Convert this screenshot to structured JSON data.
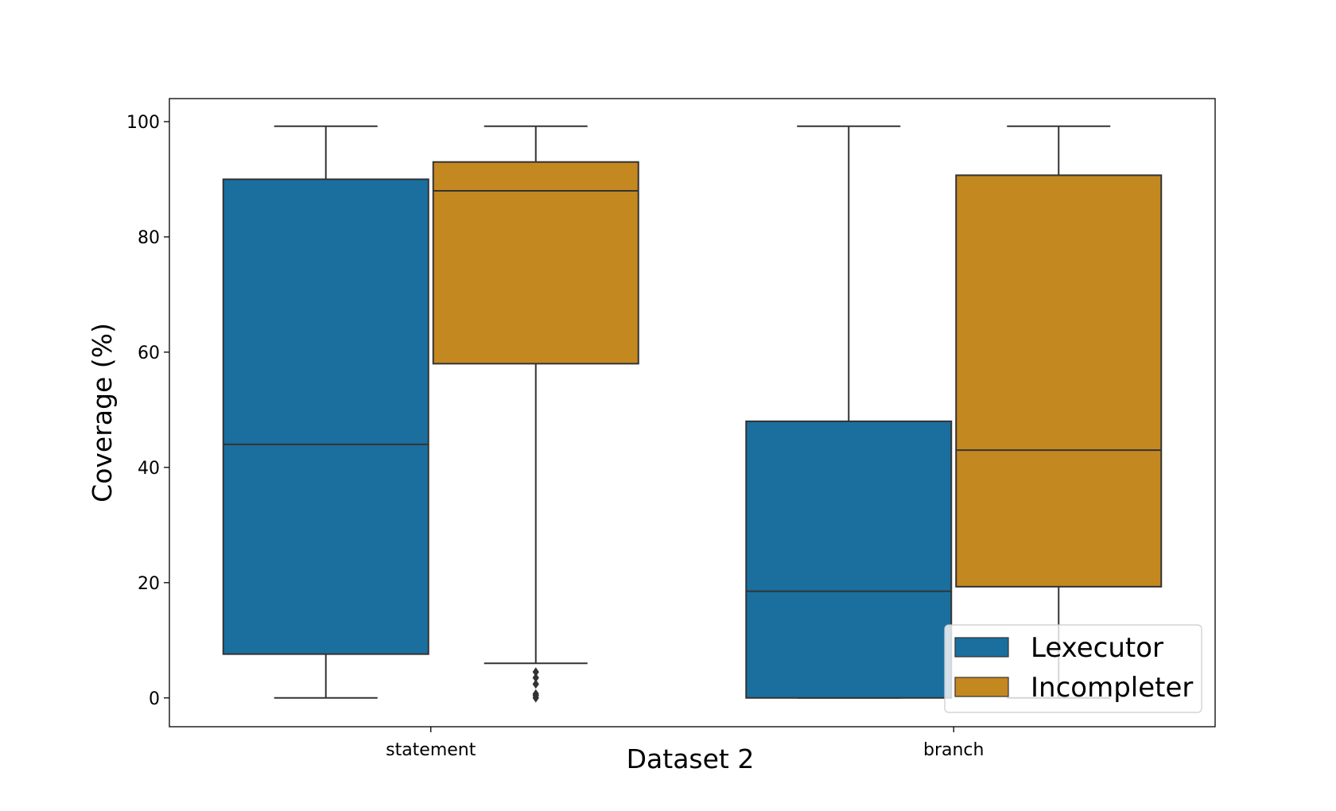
{
  "chart_data": {
    "type": "box",
    "xlabel": "Dataset 2",
    "ylabel": "Coverage (%)",
    "categories": [
      "statement",
      "branch"
    ],
    "ylim": [
      -5,
      104
    ],
    "yticks": [
      0,
      20,
      40,
      60,
      80,
      100
    ],
    "grid": false,
    "legend_position": "bottom-right",
    "series": [
      {
        "name": "Lexecutor",
        "color": "#1a6f9f",
        "boxes": [
          {
            "category": "statement",
            "whisker_low": 0,
            "q1": 7.6,
            "median": 44,
            "q3": 90,
            "whisker_high": 99.2,
            "outliers": []
          },
          {
            "category": "branch",
            "whisker_low": 0,
            "q1": 0,
            "median": 18.5,
            "q3": 48,
            "whisker_high": 99.2,
            "outliers": []
          }
        ]
      },
      {
        "name": "Incompleter",
        "color": "#c48820",
        "boxes": [
          {
            "category": "statement",
            "whisker_low": 6,
            "q1": 58,
            "median": 88,
            "q3": 93,
            "whisker_high": 99.2,
            "outliers": [
              4.5,
              3.5,
              2.4,
              0.7,
              0.4,
              0
            ]
          },
          {
            "category": "branch",
            "whisker_low": 0,
            "q1": 19.3,
            "median": 43,
            "q3": 90.7,
            "whisker_high": 99.2,
            "outliers": []
          }
        ]
      }
    ]
  }
}
